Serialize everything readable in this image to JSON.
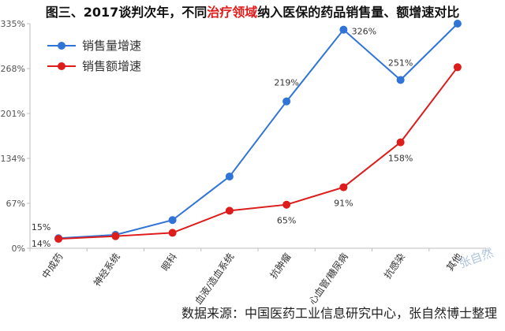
{
  "title": {
    "before": "图三、2017谈判次年，不同",
    "highlight": "治疗领域",
    "after": "纳入医保的药品销售量、额增速对比"
  },
  "source": "数据来源：中国医药工业信息研究中心，张自然博士整理",
  "watermark": "张自然",
  "colors": {
    "volume": "#2f74d6",
    "amount": "#dd1c1c",
    "highlight": "#e11a1a"
  },
  "chart_data": {
    "type": "line",
    "categories": [
      "中成药",
      "神经系统",
      "眼科",
      "血液/造血系统",
      "抗肿瘤",
      "心血管/糖尿病",
      "抗感染",
      "其他"
    ],
    "y_ticks": [
      "0%",
      "67%",
      "134%",
      "201%",
      "268%",
      "335%"
    ],
    "ylim": [
      0,
      335
    ],
    "grid": false,
    "legend_position": "top-left",
    "series": [
      {
        "name": "销售量增速",
        "values": [
          15,
          20,
          42,
          107,
          219,
          326,
          251,
          335
        ],
        "labels": [
          "15%",
          "",
          "",
          "",
          "219%",
          "326%",
          "251%",
          ""
        ]
      },
      {
        "name": "销售额增速",
        "values": [
          14,
          18,
          23,
          56,
          65,
          91,
          158,
          270
        ],
        "labels": [
          "14%",
          "",
          "",
          "",
          "65%",
          "91%",
          "158%",
          ""
        ]
      }
    ]
  }
}
